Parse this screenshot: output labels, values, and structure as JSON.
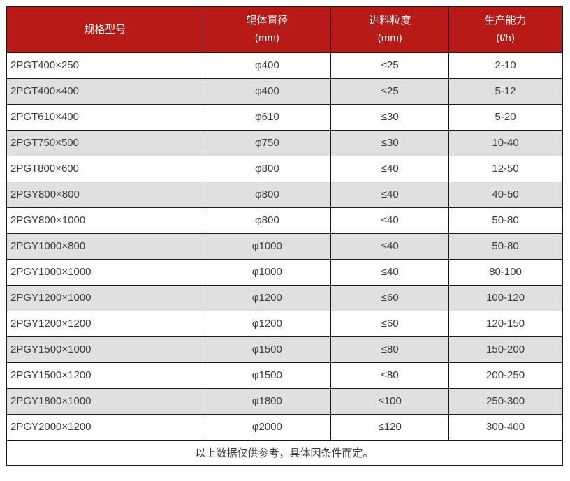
{
  "colors": {
    "header_bg": "#b71a17",
    "header_text": "#ffffff",
    "stripe_bg": "#e0e0e0",
    "row_bg": "#ffffff",
    "border": "#1a1a1a",
    "cell_text": "#3c3c3c"
  },
  "table": {
    "headers": [
      {
        "label": "规格型号",
        "unit": ""
      },
      {
        "label": "辊体直径",
        "unit": "(mm)"
      },
      {
        "label": "进料粒度",
        "unit": "(mm)"
      },
      {
        "label": "生产能力",
        "unit": "(t/h)"
      }
    ],
    "rows": [
      [
        "2PGT400×250",
        "φ400",
        "≤25",
        "2-10"
      ],
      [
        "2PGT400×400",
        "φ400",
        "≤25",
        "5-12"
      ],
      [
        "2PGT610×400",
        "φ610",
        "≤30",
        "5-20"
      ],
      [
        "2PGT750×500",
        "φ750",
        "≤30",
        "10-40"
      ],
      [
        "2PGT800×600",
        "φ800",
        "≤40",
        "12-50"
      ],
      [
        "2PGY800×800",
        "φ800",
        "≤40",
        "40-50"
      ],
      [
        "2PGY800×1000",
        "φ800",
        "≤40",
        "50-80"
      ],
      [
        "2PGY1000×800",
        "φ1000",
        "≤40",
        "50-80"
      ],
      [
        "2PGY1000×1000",
        "φ1000",
        "≤40",
        "80-100"
      ],
      [
        "2PGY1200×1000",
        "φ1200",
        "≤60",
        "100-120"
      ],
      [
        "2PGY1200×1200",
        "φ1200",
        "≤60",
        "120-150"
      ],
      [
        "2PGY1500×1000",
        "φ1500",
        "≤80",
        "150-200"
      ],
      [
        "2PGY1500×1200",
        "φ1500",
        "≤80",
        "200-250"
      ],
      [
        "2PGY1800×1000",
        "φ1800",
        "≤100",
        "250-300"
      ],
      [
        "2PGY2000×1200",
        "φ2000",
        "≤120",
        "300-400"
      ]
    ],
    "footnote": "以上数据仅供参考，具体因条件而定。"
  }
}
